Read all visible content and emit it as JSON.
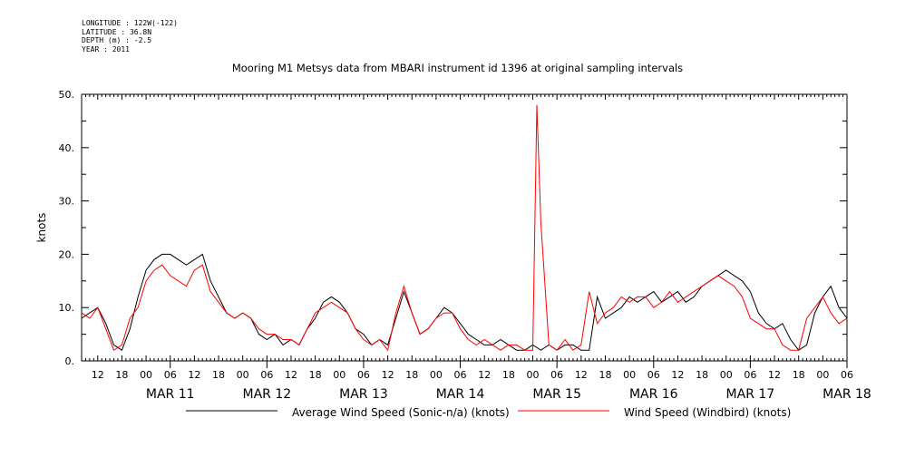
{
  "header": {
    "longitude": "LONGITUDE : 122W(-122)",
    "latitude": "LATITUDE : 36.8N",
    "depth": "DEPTH (m) : -2.5",
    "year": "YEAR : 2011"
  },
  "chart_data": {
    "type": "line",
    "title": "Mooring M1 Metsys data from MBARI instrument id 1396 at original sampling intervals",
    "ylabel": "knots",
    "ylim": [
      0,
      50
    ],
    "y_ticks": [
      "0.",
      "10.",
      "20.",
      "30.",
      "40.",
      "50."
    ],
    "xlim_hours": [
      2,
      192
    ],
    "x_tick_labels": [
      "12",
      "18",
      "00",
      "06",
      "12",
      "18",
      "00",
      "06",
      "12",
      "18",
      "00",
      "06",
      "12",
      "18",
      "00",
      "06",
      "12",
      "18",
      "00",
      "06",
      "12",
      "18",
      "00",
      "06",
      "12",
      "18",
      "00",
      "06",
      "12",
      "18",
      "00",
      "06"
    ],
    "date_labels": [
      "MAR 11",
      "MAR 12",
      "MAR 13",
      "MAR 14",
      "MAR 15",
      "MAR 16",
      "MAR 17",
      "MAR 18"
    ],
    "date_tick_hours": [
      24,
      48,
      72,
      96,
      120,
      144,
      168,
      192
    ],
    "series": [
      {
        "name": "Average Wind Speed (Sonic-n/a) (knots)",
        "color": "#000000",
        "x": [
          2,
          4,
          6,
          8,
          10,
          12,
          14,
          16,
          18,
          20,
          22,
          24,
          26,
          28,
          30,
          32,
          34,
          36,
          38,
          40,
          42,
          44,
          46,
          48,
          50,
          52,
          54,
          56,
          58,
          60,
          62,
          64,
          66,
          68,
          70,
          72,
          74,
          76,
          78,
          80,
          82,
          84,
          86,
          88,
          90,
          92,
          94,
          96,
          98,
          100,
          102,
          104,
          106,
          108,
          110,
          112,
          114,
          116,
          118,
          120,
          122,
          124,
          126,
          128,
          130,
          132,
          134,
          136,
          138,
          140,
          142,
          144,
          146,
          148,
          150,
          152,
          154,
          156,
          158,
          160,
          162,
          164,
          166,
          168,
          170,
          172,
          174,
          176,
          178,
          180,
          182,
          184,
          186,
          188,
          190,
          192
        ],
        "y": [
          8,
          9,
          10,
          7,
          3,
          2,
          6,
          12,
          17,
          19,
          20,
          20,
          19,
          18,
          19,
          20,
          15,
          12,
          9,
          8,
          9,
          8,
          5,
          4,
          5,
          3,
          4,
          3,
          6,
          8,
          11,
          12,
          11,
          9,
          6,
          5,
          3,
          4,
          3,
          8,
          13,
          9,
          5,
          6,
          8,
          10,
          9,
          7,
          5,
          4,
          3,
          3,
          4,
          3,
          2,
          2,
          3,
          2,
          3,
          2,
          3,
          3,
          2,
          2,
          12,
          8,
          9,
          10,
          12,
          11,
          12,
          13,
          11,
          12,
          13,
          11,
          12,
          14,
          15,
          16,
          17,
          16,
          15,
          13,
          9,
          7,
          6,
          7,
          4,
          2,
          3,
          9,
          12,
          14,
          10,
          8
        ]
      },
      {
        "name": "Wind Speed (Windbird) (knots)",
        "color": "#ff0000",
        "x": [
          2,
          4,
          6,
          8,
          10,
          12,
          14,
          16,
          18,
          20,
          22,
          24,
          26,
          28,
          30,
          32,
          34,
          36,
          38,
          40,
          42,
          44,
          46,
          48,
          50,
          52,
          54,
          56,
          58,
          60,
          62,
          64,
          66,
          68,
          70,
          72,
          74,
          76,
          78,
          80,
          82,
          84,
          86,
          88,
          90,
          92,
          94,
          96,
          98,
          100,
          102,
          104,
          106,
          108,
          110,
          112,
          114,
          115,
          116,
          118,
          120,
          122,
          124,
          126,
          128,
          130,
          132,
          134,
          136,
          138,
          140,
          142,
          144,
          146,
          148,
          150,
          152,
          154,
          156,
          158,
          160,
          162,
          164,
          166,
          168,
          170,
          172,
          174,
          176,
          178,
          180,
          182,
          184,
          186,
          188,
          190,
          192
        ],
        "y": [
          9,
          8,
          10,
          6,
          2,
          3,
          8,
          10,
          15,
          17,
          18,
          16,
          15,
          14,
          17,
          18,
          13,
          11,
          9,
          8,
          9,
          8,
          6,
          5,
          5,
          4,
          4,
          3,
          6,
          9,
          10,
          11,
          10,
          9,
          6,
          4,
          3,
          4,
          2,
          9,
          14,
          9,
          5,
          6,
          8,
          9,
          9,
          6,
          4,
          3,
          4,
          3,
          2,
          3,
          3,
          2,
          2,
          48,
          26,
          3,
          2,
          4,
          2,
          3,
          13,
          7,
          9,
          10,
          12,
          11,
          12,
          12,
          10,
          11,
          13,
          11,
          12,
          13,
          14,
          15,
          16,
          15,
          14,
          12,
          8,
          7,
          6,
          6,
          3,
          2,
          2,
          8,
          10,
          12,
          9,
          7,
          8
        ]
      }
    ]
  }
}
